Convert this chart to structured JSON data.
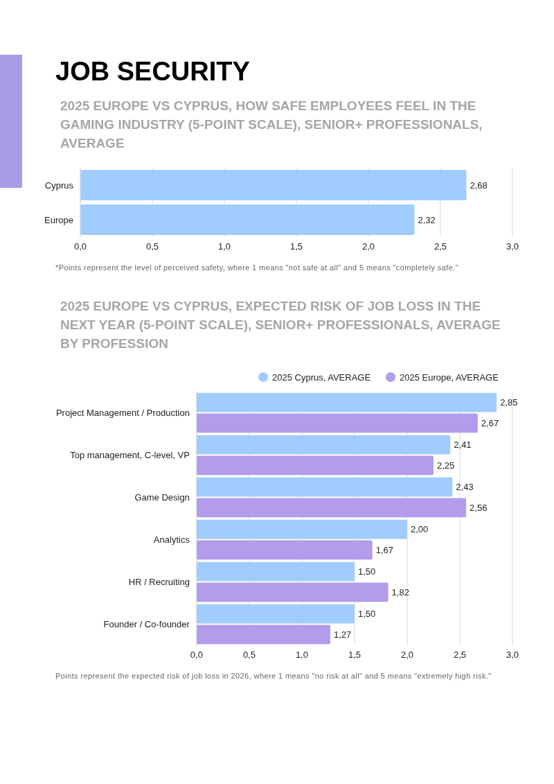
{
  "chart_data": [
    {
      "type": "bar",
      "orientation": "horizontal",
      "title": "JOB SECURITY",
      "subtitle": "2025 EUROPE VS CYPRUS, HOW SAFE EMPLOYEES FEEL IN THE GAMING INDUSTRY (5-POINT SCALE), SENIOR+ PROFESSIONALS, AVERAGE",
      "categories": [
        "Cyprus",
        "Europe"
      ],
      "values": [
        2.68,
        2.32
      ],
      "value_labels": [
        "2,68",
        "2,32"
      ],
      "color": "#a0cdfd",
      "xlim": [
        0,
        3
      ],
      "xticks": [
        {
          "value": 0,
          "label": "0,0"
        },
        {
          "value": 0.5,
          "label": "0,5"
        },
        {
          "value": 1,
          "label": "1,0"
        },
        {
          "value": 1.5,
          "label": "1,5"
        },
        {
          "value": 2,
          "label": "2,0"
        },
        {
          "value": 2.5,
          "label": "2,5"
        },
        {
          "value": 3,
          "label": "3,0"
        }
      ],
      "grid": "x",
      "annotations": [
        "*Points represent the level of perceived safety, where 1 means \"not safe at all\" and 5 means \"completely safe.\""
      ]
    },
    {
      "type": "bar",
      "orientation": "horizontal",
      "title": "2025 EUROPE VS CYPRUS, EXPECTED RISK OF JOB LOSS IN THE NEXT YEAR (5-POINT SCALE), SENIOR+ PROFESSIONALS, AVERAGE BY PROFESSION",
      "categories": [
        "Project Management / Production",
        "Top management, C-level, VP",
        "Game Design",
        "Analytics",
        "HR / Recruiting",
        "Founder / Co-founder"
      ],
      "series": [
        {
          "name": "2025 Cyprus, AVERAGE",
          "color": "#a0cdfd",
          "values": [
            2.85,
            2.41,
            2.43,
            2.0,
            1.5,
            1.5
          ],
          "value_labels": [
            "2,85",
            "2,41",
            "2,43",
            "2,00",
            "1,50",
            "1,50"
          ]
        },
        {
          "name": "2025 Europe, AVERAGE",
          "color": "#b39ceb",
          "values": [
            2.67,
            2.25,
            2.56,
            1.67,
            1.82,
            1.27
          ],
          "value_labels": [
            "2,67",
            "2,25",
            "2,56",
            "1,67",
            "1,82",
            "1,27"
          ]
        }
      ],
      "xlim": [
        0,
        3
      ],
      "xticks": [
        {
          "value": 0,
          "label": "0,0"
        },
        {
          "value": 0.5,
          "label": "0,5"
        },
        {
          "value": 1,
          "label": "1,0"
        },
        {
          "value": 1.5,
          "label": "1,5"
        },
        {
          "value": 2,
          "label": "2,0"
        },
        {
          "value": 2.5,
          "label": "2,5"
        },
        {
          "value": 3,
          "label": "3,0"
        }
      ],
      "grid": "x",
      "legend": "top right",
      "annotations": [
        "Points represent the expected risk of job loss in 2026, where 1 means \"no risk at all\" and 5 means \"extremely high risk.\""
      ]
    }
  ]
}
